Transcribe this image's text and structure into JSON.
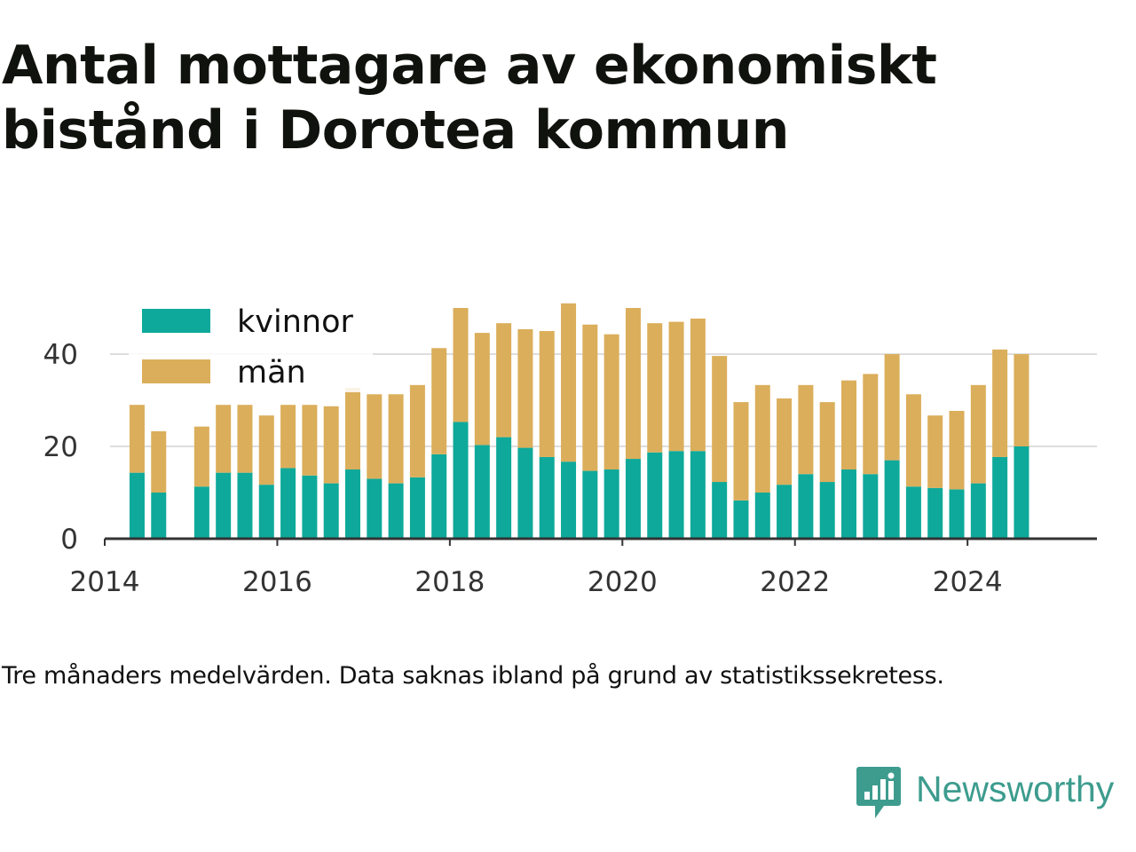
{
  "title": "Antal mottagare av ekonomiskt bistånd i Dorotea kommun",
  "caption": "Tre månaders medelvärden. Data saknas ibland på grund av statistikssekretess.",
  "brand": "Newsworthy",
  "colors": {
    "kvinnor": "#0ea99a",
    "man": "#dbae5b",
    "grid": "#dddddd",
    "axis": "#333333",
    "brand": "#3d9c8e"
  },
  "chart_data": {
    "type": "bar",
    "stacked": true,
    "x_tick_labels": [
      "2014",
      "2016",
      "2018",
      "2020",
      "2022",
      "2024"
    ],
    "y_tick_labels": [
      "0",
      "20",
      "40"
    ],
    "ylim": [
      0,
      52
    ],
    "legend": {
      "placement": "top-left",
      "entries": [
        "kvinnor",
        "män"
      ]
    },
    "grid": true,
    "x": [
      "2014-05",
      "2014-08",
      "2014-11",
      "2015-02",
      "2015-05",
      "2015-08",
      "2015-11",
      "2016-02",
      "2016-05",
      "2016-08",
      "2016-11",
      "2017-02",
      "2017-05",
      "2017-08",
      "2017-11",
      "2018-02",
      "2018-05",
      "2018-08",
      "2018-11",
      "2019-02",
      "2019-05",
      "2019-08",
      "2019-11",
      "2020-02",
      "2020-05",
      "2020-08",
      "2020-11",
      "2021-02",
      "2021-05",
      "2021-08",
      "2021-11",
      "2022-02",
      "2022-05",
      "2022-08",
      "2022-11",
      "2023-02",
      "2023-05",
      "2023-08",
      "2023-11",
      "2024-02",
      "2024-05",
      "2024-08"
    ],
    "series": [
      {
        "name": "kvinnor",
        "values": [
          14.3,
          10,
          null,
          11.3,
          14.3,
          14.3,
          11.7,
          15.3,
          13.7,
          12,
          15,
          13,
          12,
          13.3,
          18.3,
          25.3,
          20.3,
          22,
          19.7,
          17.7,
          16.7,
          14.7,
          15,
          17.3,
          18.7,
          19,
          19,
          12.3,
          8.3,
          10,
          11.7,
          14,
          12.3,
          15,
          14,
          17,
          11.3,
          11,
          10.7,
          12,
          17.7,
          20
        ]
      },
      {
        "name": "män",
        "values": [
          14.7,
          13.3,
          null,
          13,
          14.7,
          14.7,
          15,
          13.7,
          15.3,
          16.7,
          17.7,
          18.3,
          19.3,
          20,
          23,
          24.7,
          24.3,
          24.7,
          25.7,
          27.3,
          34.3,
          31.7,
          29.3,
          32.7,
          28,
          28,
          28.7,
          27.3,
          21.3,
          23.3,
          18.7,
          19.3,
          17.3,
          19.3,
          21.7,
          23,
          20,
          15.7,
          17,
          21.3,
          23.3,
          20
        ]
      }
    ]
  }
}
